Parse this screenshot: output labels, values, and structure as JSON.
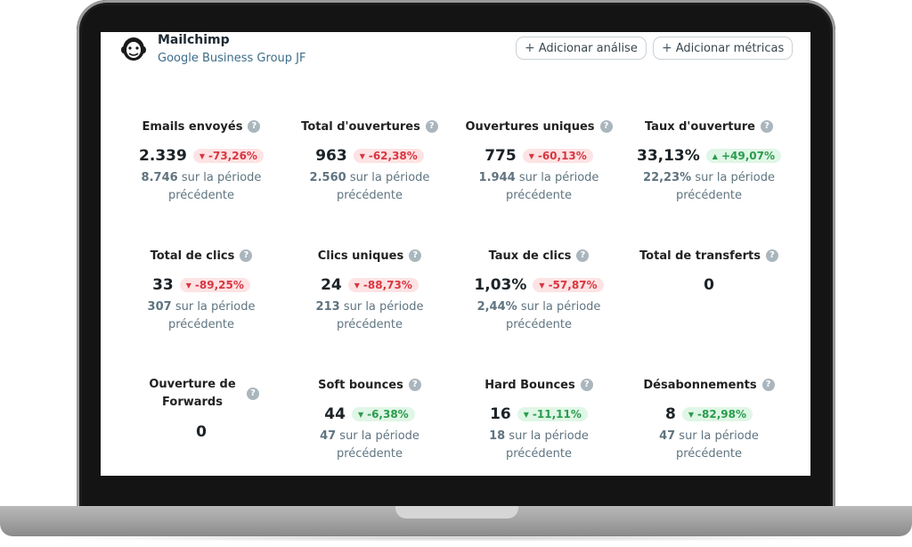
{
  "app": {
    "title": "Mailchimp",
    "subtitle": "Google Business Group JF"
  },
  "header_buttons": {
    "add_analysis": "Adicionar análise",
    "add_metrics": "Adicionar métricas"
  },
  "prev_suffix": "sur la période",
  "prev_suffix2": "précédente",
  "metrics": [
    {
      "title": "Emails envoyés",
      "value": "2.339",
      "delta": "-73,26%",
      "trend": "down-red",
      "previous": "8.746"
    },
    {
      "title": "Total d'ouvertures",
      "value": "963",
      "delta": "-62,38%",
      "trend": "down-red",
      "previous": "2.560"
    },
    {
      "title": "Ouvertures uniques",
      "value": "775",
      "delta": "-60,13%",
      "trend": "down-red",
      "previous": "1.944"
    },
    {
      "title": "Taux d'ouverture",
      "value": "33,13%",
      "delta": "+49,07%",
      "trend": "up-green",
      "previous": "22,23%"
    },
    {
      "title": "Total de clics",
      "value": "33",
      "delta": "-89,25%",
      "trend": "down-red",
      "previous": "307"
    },
    {
      "title": "Clics uniques",
      "value": "24",
      "delta": "-88,73%",
      "trend": "down-red",
      "previous": "213"
    },
    {
      "title": "Taux de clics",
      "value": "1,03%",
      "delta": "-57,87%",
      "trend": "down-red",
      "previous": "2,44%"
    },
    {
      "title": "Total de transferts",
      "value": "0",
      "delta": null,
      "trend": null,
      "previous": null
    },
    {
      "title": "Ouverture de Forwards",
      "value": "0",
      "delta": null,
      "trend": null,
      "previous": null
    },
    {
      "title": "Soft bounces",
      "value": "44",
      "delta": "-6,38%",
      "trend": "down-green",
      "previous": "47"
    },
    {
      "title": "Hard Bounces",
      "value": "16",
      "delta": "-11,11%",
      "trend": "down-green",
      "previous": "18"
    },
    {
      "title": "Désabonnements",
      "value": "8",
      "delta": "-82,98%",
      "trend": "down-green",
      "previous": "47"
    }
  ],
  "icons": {
    "help": "question-icon",
    "plus": "plus-icon",
    "logo": "mailchimp-logo"
  }
}
